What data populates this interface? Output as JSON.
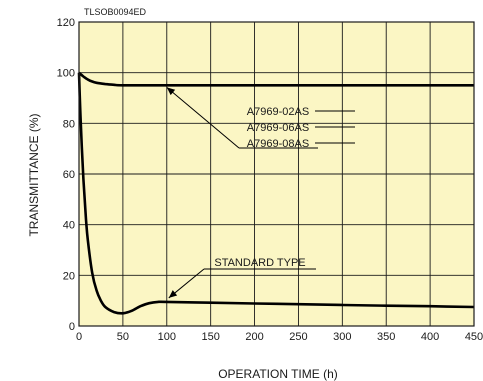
{
  "figure_code": "TLSOB0094ED",
  "chart_data": {
    "type": "line",
    "title": "",
    "xlabel": "OPERATION TIME (h)",
    "ylabel": "TRANSMITTANCE (%)",
    "xlim": [
      0,
      450
    ],
    "ylim": [
      0,
      120
    ],
    "xticks": [
      0,
      50,
      100,
      150,
      200,
      250,
      300,
      350,
      400,
      450
    ],
    "yticks": [
      0,
      20,
      40,
      60,
      80,
      100,
      120
    ],
    "grid": true,
    "background_color": "#fbf6c4",
    "line_color": "#000000",
    "series": [
      {
        "name": "A7969-02AS / A7969-06AS / A7969-08AS",
        "x": [
          0,
          5,
          10,
          15,
          20,
          30,
          40,
          50,
          100,
          150,
          200,
          250,
          300,
          350,
          400,
          450
        ],
        "y": [
          100,
          98.5,
          97.3,
          96.5,
          96,
          95.5,
          95.2,
          95,
          95,
          95,
          95,
          95,
          95,
          95,
          95,
          95
        ]
      },
      {
        "name": "STANDARD TYPE",
        "x": [
          0,
          2,
          5,
          8,
          10,
          15,
          20,
          25,
          30,
          40,
          50,
          60,
          70,
          80,
          90,
          100,
          150,
          200,
          250,
          300,
          350,
          400,
          450
        ],
        "y": [
          100,
          80,
          58,
          42,
          34,
          21,
          14,
          10,
          7.5,
          5.5,
          5,
          6,
          7.8,
          9,
          9.5,
          9.5,
          9.2,
          8.9,
          8.6,
          8.3,
          8.0,
          7.8,
          7.5
        ]
      }
    ],
    "annotations": [
      {
        "lines": [
          "A7969-02AS",
          "A7969-06AS",
          "A7969-08AS"
        ],
        "points_to_series": 0
      },
      {
        "lines": [
          "STANDARD TYPE"
        ],
        "points_to_series": 1
      }
    ]
  }
}
